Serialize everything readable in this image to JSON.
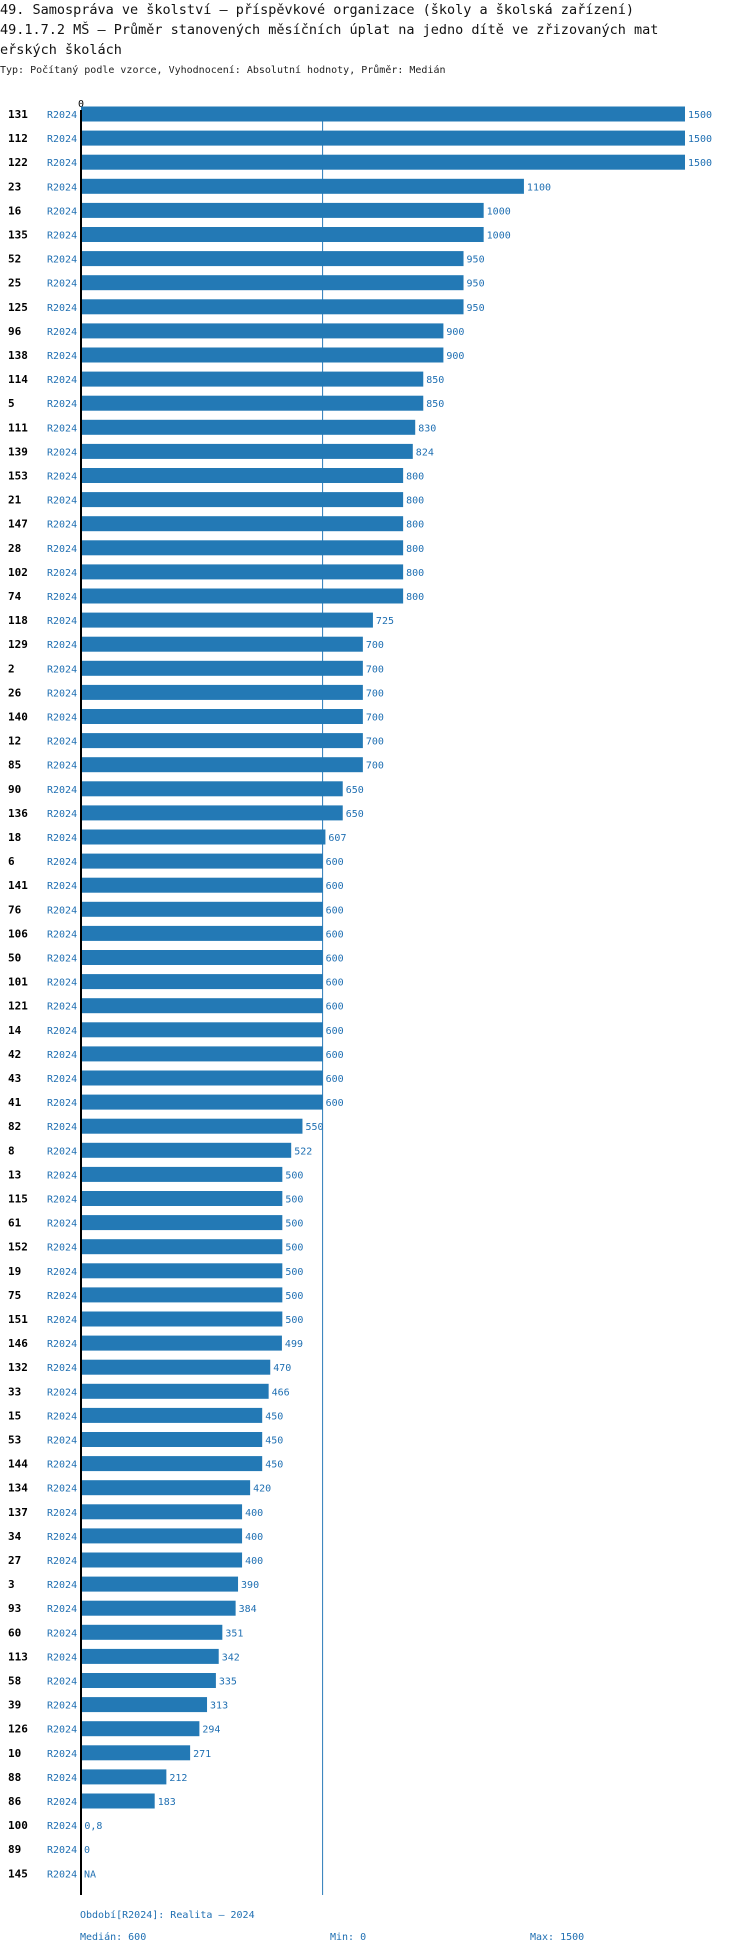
{
  "header": {
    "title_line1": "49. Samospráva ve školství – příspěvkové organizace (školy a školská zařízení)",
    "title_line2": "49.1.7.2 MŠ – Průměr stanovených měsíčních úplat na jedno dítě ve zřizovaných mat",
    "title_line3": "eřských školách",
    "subtitle": "Typ: Počítaný podle vzorce, Vyhodnocení: Absolutní hodnoty, Průměr: Medián"
  },
  "colors": {
    "bar": "#2379b5",
    "value_text": "#1f6fb2",
    "axis": "#000000",
    "median_line": "#2a7ab8"
  },
  "chart_data": {
    "type": "bar",
    "orientation": "horizontal",
    "axis_zero_label": "0",
    "xlim": [
      0,
      1500
    ],
    "median": 600,
    "period_label": "R2024",
    "rows": [
      {
        "id": "131",
        "value": 1500,
        "label": "1500"
      },
      {
        "id": "112",
        "value": 1500,
        "label": "1500"
      },
      {
        "id": "122",
        "value": 1500,
        "label": "1500"
      },
      {
        "id": "23",
        "value": 1100,
        "label": "1100"
      },
      {
        "id": "16",
        "value": 1000,
        "label": "1000"
      },
      {
        "id": "135",
        "value": 1000,
        "label": "1000"
      },
      {
        "id": "52",
        "value": 950,
        "label": "950"
      },
      {
        "id": "25",
        "value": 950,
        "label": "950"
      },
      {
        "id": "125",
        "value": 950,
        "label": "950"
      },
      {
        "id": "96",
        "value": 900,
        "label": "900"
      },
      {
        "id": "138",
        "value": 900,
        "label": "900"
      },
      {
        "id": "114",
        "value": 850,
        "label": "850"
      },
      {
        "id": "5",
        "value": 850,
        "label": "850"
      },
      {
        "id": "111",
        "value": 830,
        "label": "830"
      },
      {
        "id": "139",
        "value": 824,
        "label": "824"
      },
      {
        "id": "153",
        "value": 800,
        "label": "800"
      },
      {
        "id": "21",
        "value": 800,
        "label": "800"
      },
      {
        "id": "147",
        "value": 800,
        "label": "800"
      },
      {
        "id": "28",
        "value": 800,
        "label": "800"
      },
      {
        "id": "102",
        "value": 800,
        "label": "800"
      },
      {
        "id": "74",
        "value": 800,
        "label": "800"
      },
      {
        "id": "118",
        "value": 725,
        "label": "725"
      },
      {
        "id": "129",
        "value": 700,
        "label": "700"
      },
      {
        "id": "2",
        "value": 700,
        "label": "700"
      },
      {
        "id": "26",
        "value": 700,
        "label": "700"
      },
      {
        "id": "140",
        "value": 700,
        "label": "700"
      },
      {
        "id": "12",
        "value": 700,
        "label": "700"
      },
      {
        "id": "85",
        "value": 700,
        "label": "700"
      },
      {
        "id": "90",
        "value": 650,
        "label": "650"
      },
      {
        "id": "136",
        "value": 650,
        "label": "650"
      },
      {
        "id": "18",
        "value": 607,
        "label": "607"
      },
      {
        "id": "6",
        "value": 600,
        "label": "600"
      },
      {
        "id": "141",
        "value": 600,
        "label": "600"
      },
      {
        "id": "76",
        "value": 600,
        "label": "600"
      },
      {
        "id": "106",
        "value": 600,
        "label": "600"
      },
      {
        "id": "50",
        "value": 600,
        "label": "600"
      },
      {
        "id": "101",
        "value": 600,
        "label": "600"
      },
      {
        "id": "121",
        "value": 600,
        "label": "600"
      },
      {
        "id": "14",
        "value": 600,
        "label": "600"
      },
      {
        "id": "42",
        "value": 600,
        "label": "600"
      },
      {
        "id": "43",
        "value": 600,
        "label": "600"
      },
      {
        "id": "41",
        "value": 600,
        "label": "600"
      },
      {
        "id": "82",
        "value": 550,
        "label": "550"
      },
      {
        "id": "8",
        "value": 522,
        "label": "522"
      },
      {
        "id": "13",
        "value": 500,
        "label": "500"
      },
      {
        "id": "115",
        "value": 500,
        "label": "500"
      },
      {
        "id": "61",
        "value": 500,
        "label": "500"
      },
      {
        "id": "152",
        "value": 500,
        "label": "500"
      },
      {
        "id": "19",
        "value": 500,
        "label": "500"
      },
      {
        "id": "75",
        "value": 500,
        "label": "500"
      },
      {
        "id": "151",
        "value": 500,
        "label": "500"
      },
      {
        "id": "146",
        "value": 499,
        "label": "499"
      },
      {
        "id": "132",
        "value": 470,
        "label": "470"
      },
      {
        "id": "33",
        "value": 466,
        "label": "466"
      },
      {
        "id": "15",
        "value": 450,
        "label": "450"
      },
      {
        "id": "53",
        "value": 450,
        "label": "450"
      },
      {
        "id": "144",
        "value": 450,
        "label": "450"
      },
      {
        "id": "134",
        "value": 420,
        "label": "420"
      },
      {
        "id": "137",
        "value": 400,
        "label": "400"
      },
      {
        "id": "34",
        "value": 400,
        "label": "400"
      },
      {
        "id": "27",
        "value": 400,
        "label": "400"
      },
      {
        "id": "3",
        "value": 390,
        "label": "390"
      },
      {
        "id": "93",
        "value": 384,
        "label": "384"
      },
      {
        "id": "60",
        "value": 351,
        "label": "351"
      },
      {
        "id": "113",
        "value": 342,
        "label": "342"
      },
      {
        "id": "58",
        "value": 335,
        "label": "335"
      },
      {
        "id": "39",
        "value": 313,
        "label": "313"
      },
      {
        "id": "126",
        "value": 294,
        "label": "294"
      },
      {
        "id": "10",
        "value": 271,
        "label": "271"
      },
      {
        "id": "88",
        "value": 212,
        "label": "212"
      },
      {
        "id": "86",
        "value": 183,
        "label": "183"
      },
      {
        "id": "100",
        "value": 0.8,
        "label": "0,8"
      },
      {
        "id": "89",
        "value": 0,
        "label": "0"
      },
      {
        "id": "145",
        "value": null,
        "label": "NA"
      }
    ]
  },
  "footer": {
    "period": "Období[R2024]: Realita – 2024",
    "median": "Medián: 600",
    "min": "Min: 0",
    "max": "Max: 1500"
  }
}
